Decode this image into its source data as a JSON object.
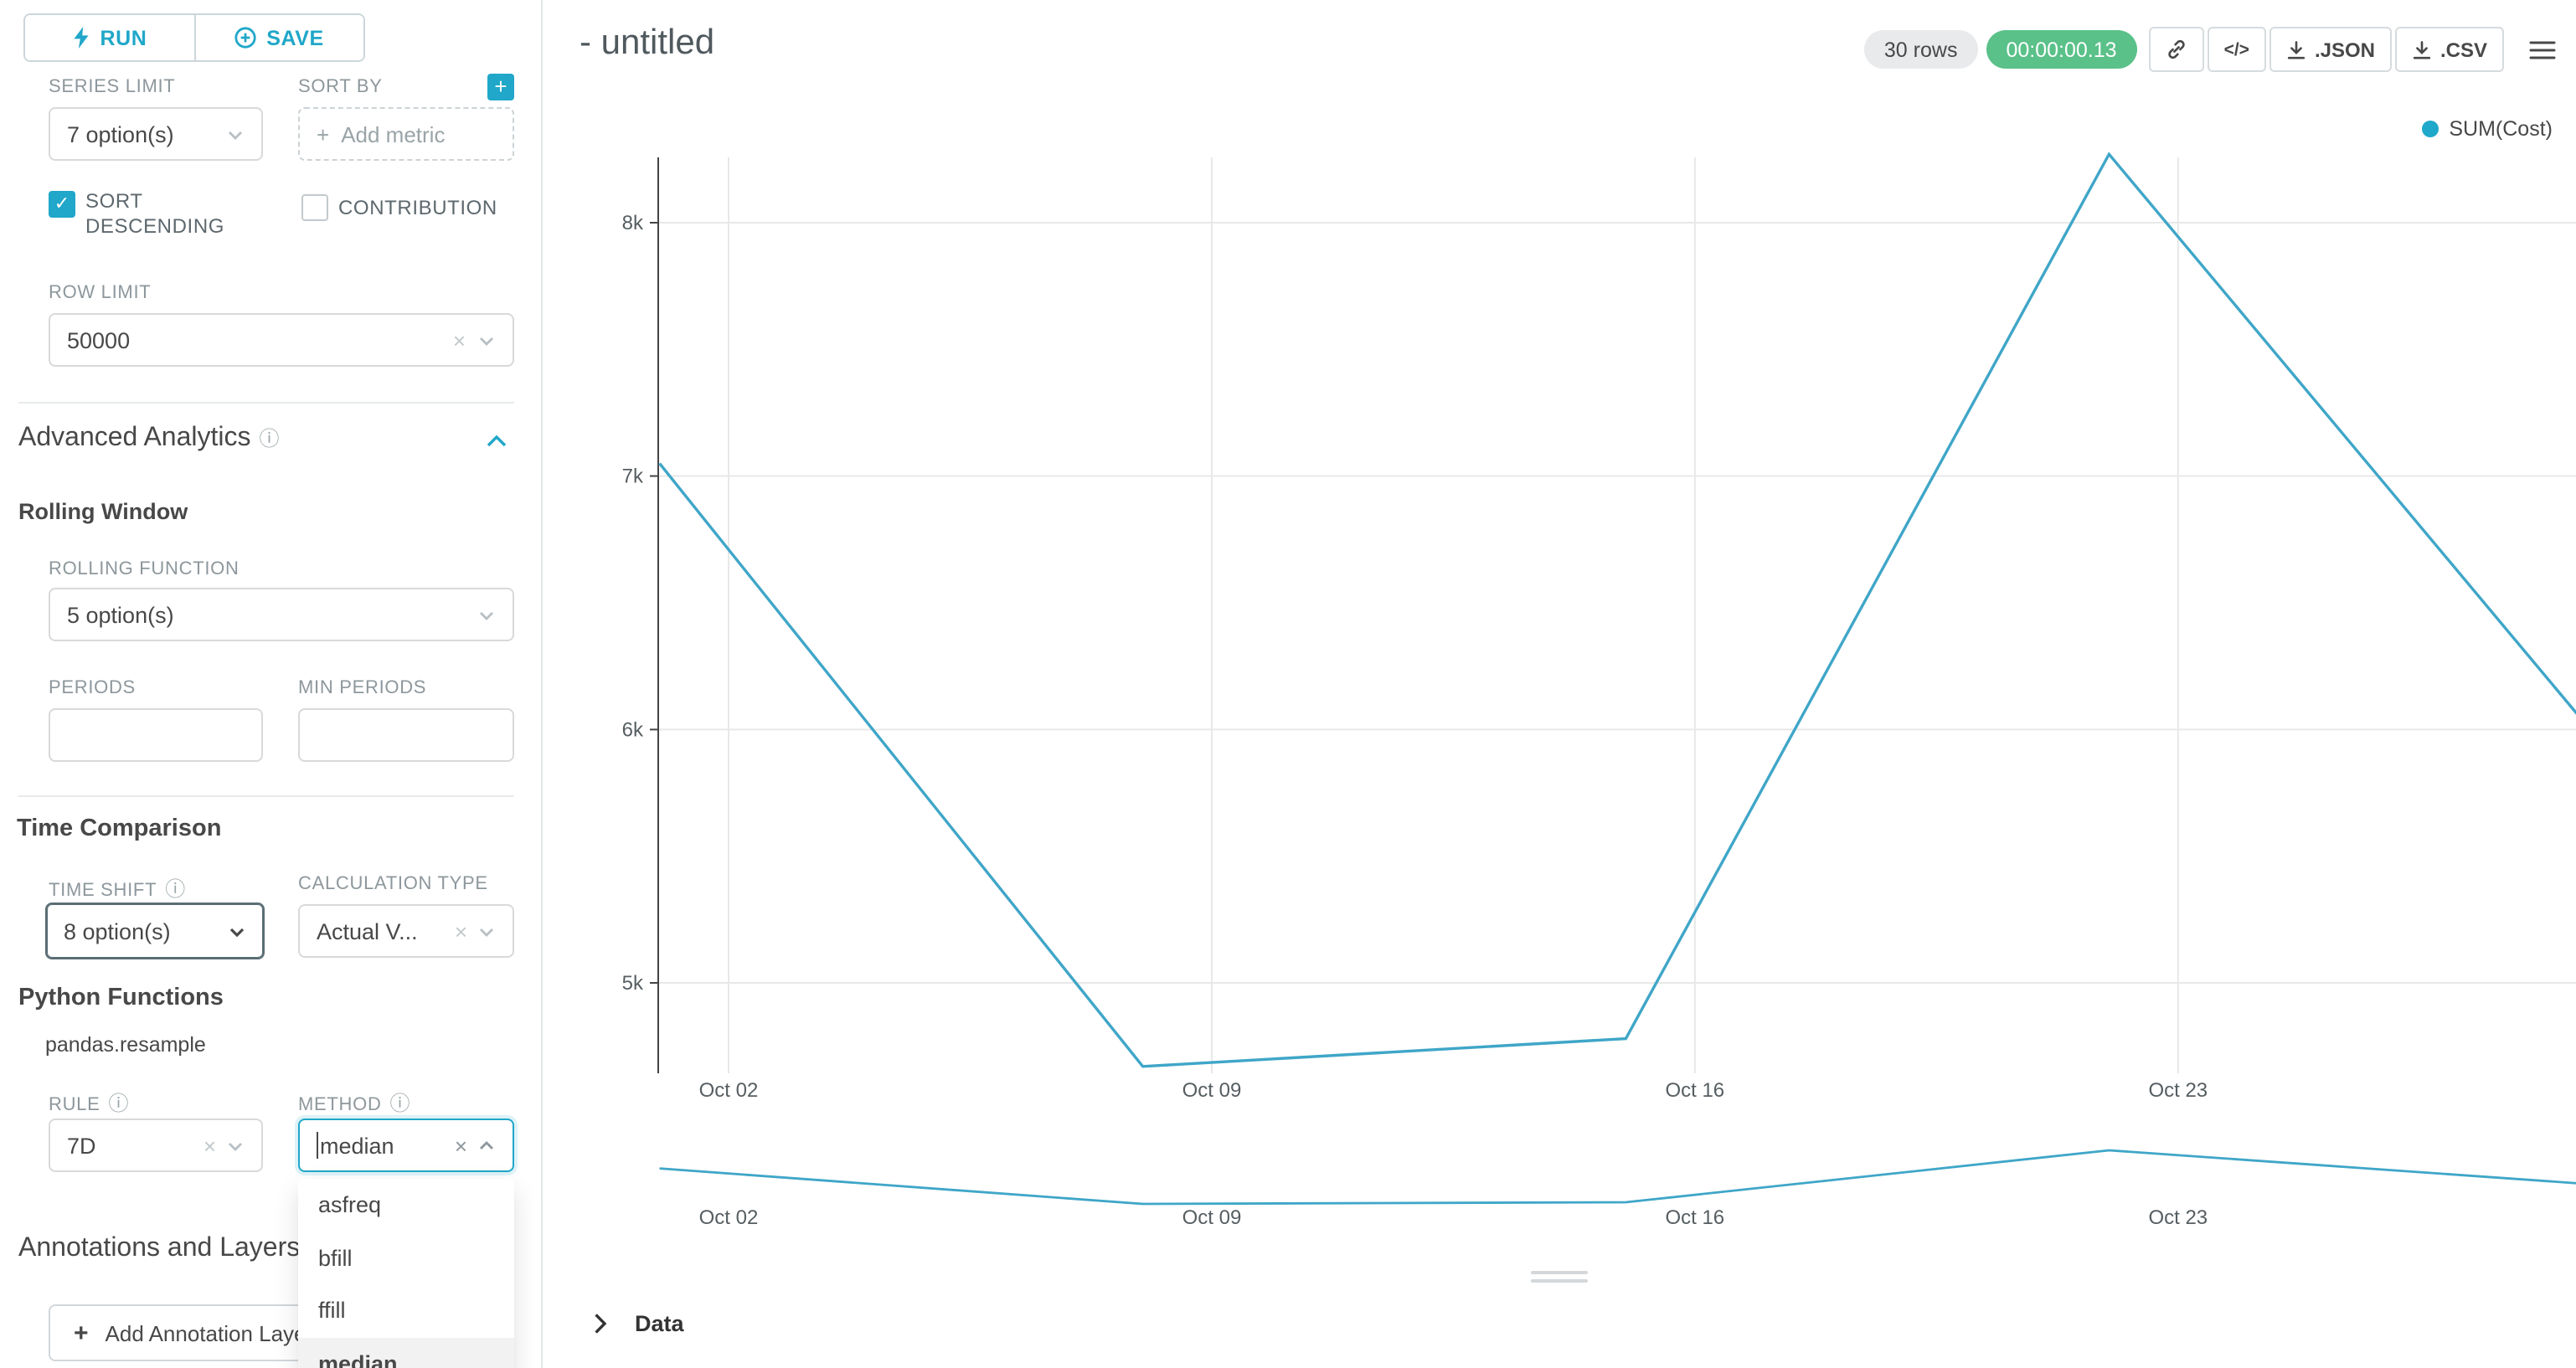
{
  "colors": {
    "accent": "#20a7c9",
    "line": "#3fa6c8",
    "legend_dot": "#1fa8c9",
    "timer_bg": "#5ac189",
    "grid": "#e8e8e8",
    "axis": "#444444"
  },
  "sidebar": {
    "run_button": "RUN",
    "save_button": "SAVE",
    "series_limit_label": "SERIES LIMIT",
    "series_limit_value": "7 option(s)",
    "sort_by_label": "SORT BY",
    "add_metric_placeholder": "Add metric",
    "sort_descending_label": "SORT DESCENDING",
    "contribution_label": "CONTRIBUTION",
    "row_limit_label": "ROW LIMIT",
    "row_limit_value": "50000",
    "advanced_analytics_title": "Advanced Analytics",
    "rolling_window_title": "Rolling Window",
    "rolling_function_label": "ROLLING FUNCTION",
    "rolling_function_value": "5 option(s)",
    "periods_label": "PERIODS",
    "min_periods_label": "MIN PERIODS",
    "time_comparison_title": "Time Comparison",
    "time_shift_label": "TIME SHIFT",
    "time_shift_value": "8 option(s)",
    "calculation_type_label": "CALCULATION TYPE",
    "calculation_type_value": "Actual V...",
    "python_functions_title": "Python Functions",
    "python_functions_subtitle": "pandas.resample",
    "rule_label": "RULE",
    "rule_value": "7D",
    "method_label": "METHOD",
    "method_value": "median",
    "method_options": [
      "asfreq",
      "bfill",
      "ffill",
      "median"
    ],
    "method_selected": "median",
    "annotations_title": "Annotations and Layers",
    "add_annotation_button": "Add Annotation Layer"
  },
  "header": {
    "chart_title": "- untitled",
    "rows_badge": "30 rows",
    "timer": "00:00:00.13",
    "embed_label": "</>",
    "json_label": ".JSON",
    "csv_label": ".CSV"
  },
  "chart_data": {
    "type": "line",
    "title": "",
    "legend_position": "top-right",
    "grid": true,
    "series": [
      {
        "name": "SUM(Cost)",
        "points": [
          {
            "x": "Oct 01",
            "day": 1,
            "value": 7050
          },
          {
            "x": "Oct 08",
            "day": 8,
            "value": 4670
          },
          {
            "x": "Oct 15",
            "day": 15,
            "value": 4780
          },
          {
            "x": "Oct 22",
            "day": 22,
            "value": 8270
          },
          {
            "x": "Oct 29",
            "day": 29,
            "value": 5990
          }
        ]
      }
    ],
    "x_ticks": [
      {
        "label": "Oct 02",
        "day": 2
      },
      {
        "label": "Oct 09",
        "day": 9
      },
      {
        "label": "Oct 16",
        "day": 16
      },
      {
        "label": "Oct 23",
        "day": 23
      }
    ],
    "y_ticks": [
      {
        "label": "5k",
        "value": 5000
      },
      {
        "label": "6k",
        "value": 6000
      },
      {
        "label": "7k",
        "value": 7000
      },
      {
        "label": "8k",
        "value": 8000
      }
    ],
    "y_domain": [
      4640,
      8260
    ],
    "mini_chart": {
      "has_same_series": true
    }
  },
  "data_panel": {
    "label": "Data"
  }
}
